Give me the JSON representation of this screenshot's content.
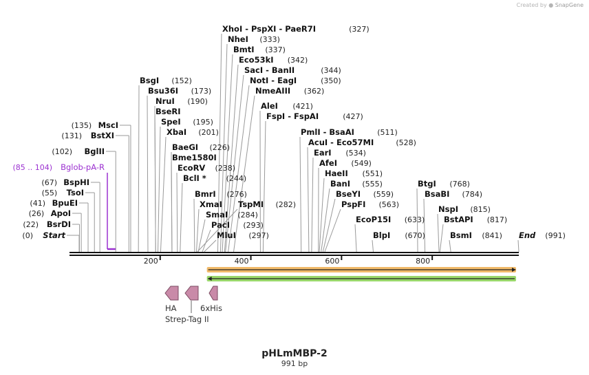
{
  "header": {
    "credit_prefix": "Created by",
    "credit_brand": "SnapGene"
  },
  "map": {
    "name": "pHLmMBP-2",
    "length_label": "991 bp",
    "length_bp": 991
  },
  "ticks": [
    {
      "bp": 200,
      "label": "200"
    },
    {
      "bp": 400,
      "label": "400"
    },
    {
      "bp": 600,
      "label": "600"
    },
    {
      "bp": 800,
      "label": "800"
    }
  ],
  "left_sites": [
    {
      "name": "Start",
      "pos": "(0)",
      "bp": 0,
      "italic": true
    },
    {
      "name": "BsrDI",
      "pos": "(22)",
      "bp": 22
    },
    {
      "name": "ApoI",
      "pos": "(26)",
      "bp": 26
    },
    {
      "name": "BpuEI",
      "pos": "(41)",
      "bp": 41
    },
    {
      "name": "TsoI",
      "pos": "(55)",
      "bp": 55
    },
    {
      "name": "BspHI",
      "pos": "(67)",
      "bp": 67
    },
    {
      "name": "BglII",
      "pos": "(102)",
      "bp": 102
    },
    {
      "name": "BstXI",
      "pos": "(131)",
      "bp": 131
    },
    {
      "name": "MscI",
      "pos": "(135)",
      "bp": 135
    }
  ],
  "primer": {
    "label": "Bglob-pA-R",
    "range": "(85 .. 104)",
    "start_bp": 85,
    "end_bp": 104,
    "color": "#9b30d0"
  },
  "right_sites": [
    {
      "name": "BsgI",
      "pos": "(152)",
      "bp": 152
    },
    {
      "name": "Bsu36I",
      "pos": "(173)",
      "bp": 173
    },
    {
      "name": "NruI",
      "pos": "(190)",
      "bp": 190
    },
    {
      "name": "BseRI",
      "pos": "",
      "bp": 190
    },
    {
      "name": "SpeI",
      "pos": "(195)",
      "bp": 195
    },
    {
      "name": "XbaI",
      "pos": "(201)",
      "bp": 201
    },
    {
      "name": "BaeGI",
      "pos": "(226)",
      "bp": 226
    },
    {
      "name": "Bme1580I",
      "pos": "",
      "bp": 226
    },
    {
      "name": "EcoRV",
      "pos": "(238)",
      "bp": 238
    },
    {
      "name": "BclI *",
      "pos": "(244)",
      "bp": 244
    },
    {
      "name": "BmrI",
      "pos": "(276)",
      "bp": 276
    },
    {
      "name": "XmaI",
      "pos": "",
      "bp": 280
    },
    {
      "name": "TspMI",
      "pos": "(282)",
      "bp": 282
    },
    {
      "name": "SmaI",
      "pos": "(284)",
      "bp": 284
    },
    {
      "name": "PacI",
      "pos": "(293)",
      "bp": 293
    },
    {
      "name": "MluI",
      "pos": "(297)",
      "bp": 297
    },
    {
      "name": "XhoI - PspXI - PaeR7I",
      "pos": "(327)",
      "bp": 327
    },
    {
      "name": "NheI",
      "pos": "(333)",
      "bp": 333
    },
    {
      "name": "BmtI",
      "pos": "(337)",
      "bp": 337
    },
    {
      "name": "Eco53kI",
      "pos": "(342)",
      "bp": 342
    },
    {
      "name": "SacI - BanII",
      "pos": "(344)",
      "bp": 344
    },
    {
      "name": "NotI - EagI",
      "pos": "(350)",
      "bp": 350
    },
    {
      "name": "NmeAIII",
      "pos": "(362)",
      "bp": 362
    },
    {
      "name": "AleI",
      "pos": "(421)",
      "bp": 421
    },
    {
      "name": "FspI - FspAI",
      "pos": "(427)",
      "bp": 427
    },
    {
      "name": "PmlI - BsaAI",
      "pos": "(511)",
      "bp": 511
    },
    {
      "name": "AcuI - Eco57MI",
      "pos": "(528)",
      "bp": 528
    },
    {
      "name": "EarI",
      "pos": "(534)",
      "bp": 534
    },
    {
      "name": "AfeI",
      "pos": "(549)",
      "bp": 549
    },
    {
      "name": "HaeII",
      "pos": "(551)",
      "bp": 551
    },
    {
      "name": "BanI",
      "pos": "(555)",
      "bp": 555
    },
    {
      "name": "BseYI",
      "pos": "(559)",
      "bp": 559
    },
    {
      "name": "PspFI",
      "pos": "(563)",
      "bp": 563
    },
    {
      "name": "EcoP15I",
      "pos": "(633)",
      "bp": 633
    },
    {
      "name": "BlpI",
      "pos": "(670)",
      "bp": 670
    },
    {
      "name": "BtgI",
      "pos": "(768)",
      "bp": 768
    },
    {
      "name": "BsaBI",
      "pos": "(784)",
      "bp": 784
    },
    {
      "name": "NspI",
      "pos": "(815)",
      "bp": 815
    },
    {
      "name": "BstAPI",
      "pos": "(817)",
      "bp": 817
    },
    {
      "name": "BsmI",
      "pos": "(841)",
      "bp": 841
    },
    {
      "name": "End",
      "pos": "(991)",
      "bp": 991,
      "italic": true
    }
  ],
  "orf_arrows": [
    {
      "direction": "forward",
      "start_bp": 303,
      "end_bp": 991,
      "color": "#f0b25a"
    },
    {
      "direction": "reverse",
      "start_bp": 303,
      "end_bp": 991,
      "color": "#8ed35a"
    }
  ],
  "features": [
    {
      "label": "HA",
      "color": "#c98aa8"
    },
    {
      "label": "Strep-Tag II",
      "color": "#c98aa8"
    },
    {
      "label": "6xHis",
      "color": "#c98aa8"
    }
  ]
}
